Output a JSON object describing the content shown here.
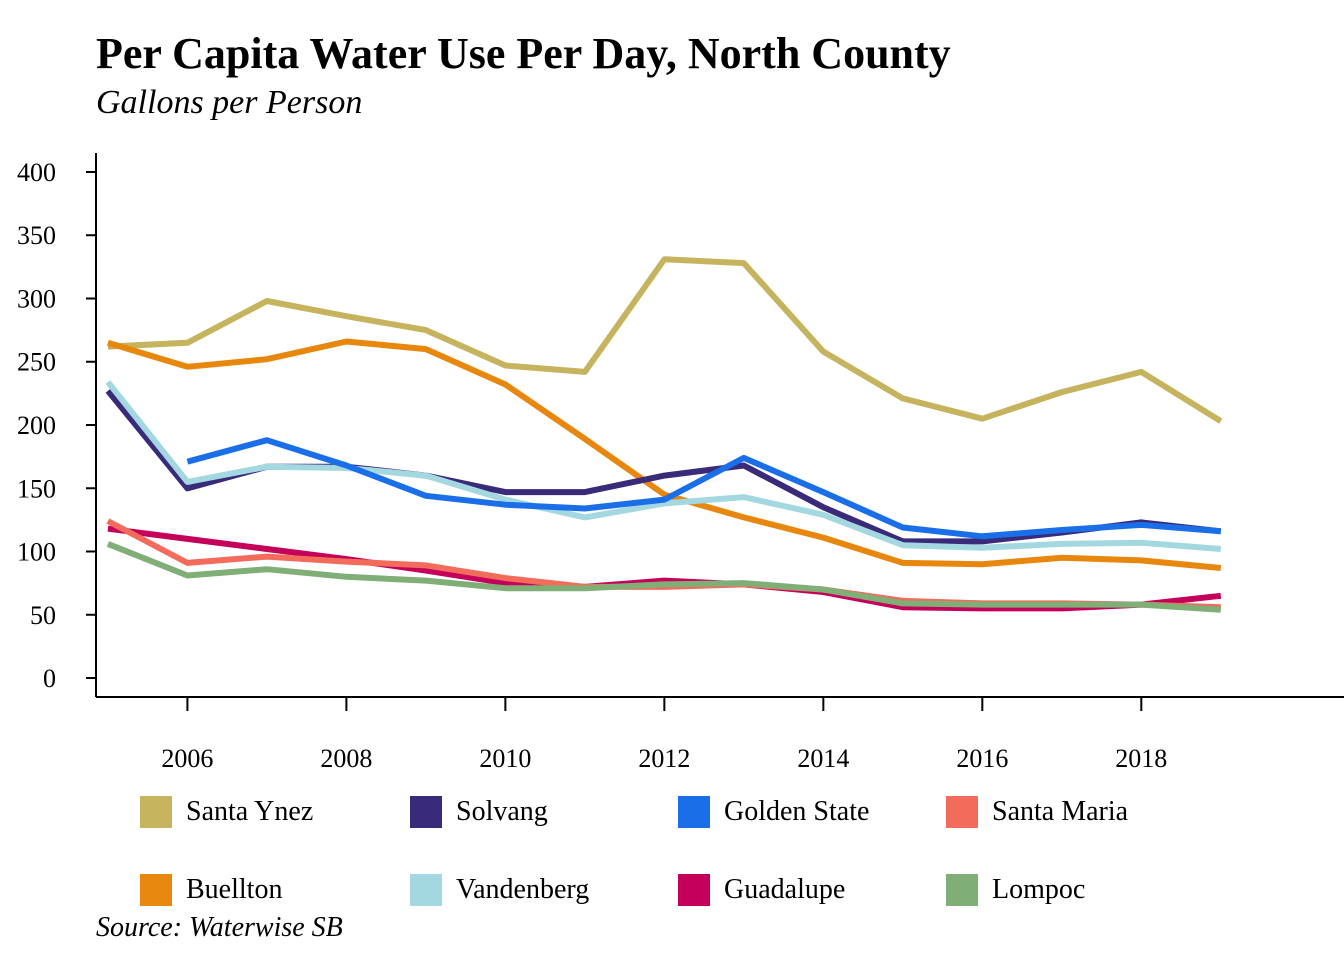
{
  "chart_data": {
    "type": "line",
    "title": "Per Capita Water Use Per Day, North County",
    "subtitle": "Gallons per Person",
    "source": "Source: Waterwise SB",
    "xlabel": "",
    "ylabel": "",
    "xlim": [
      2004.85,
      2020.55
    ],
    "ylim": [
      -15,
      415
    ],
    "x_ticks": [
      2006,
      2008,
      2010,
      2012,
      2014,
      2016,
      2018
    ],
    "y_ticks": [
      0,
      50,
      100,
      150,
      200,
      250,
      300,
      350,
      400
    ],
    "grid": false,
    "legend_position": "bottom",
    "series": [
      {
        "name": "Santa Ynez",
        "color": "#C5B35E",
        "x": [
          2005,
          2006,
          2007,
          2008,
          2009,
          2010,
          2011,
          2012,
          2013,
          2014,
          2015,
          2016,
          2017,
          2018,
          2019
        ],
        "values": [
          262,
          265,
          298,
          286,
          275,
          247,
          242,
          331,
          328,
          258,
          221,
          205,
          226,
          242,
          203
        ]
      },
      {
        "name": "Buellton",
        "color": "#E8870E",
        "x": [
          2005,
          2006,
          2007,
          2008,
          2009,
          2010,
          2011,
          2012,
          2013,
          2014,
          2015,
          2016,
          2017,
          2018,
          2019
        ],
        "values": [
          265,
          246,
          252,
          266,
          260,
          232,
          189,
          145,
          127,
          111,
          91,
          90,
          95,
          93,
          87
        ]
      },
      {
        "name": "Solvang",
        "color": "#3A2A7A",
        "x": [
          2005,
          2006,
          2007,
          2008,
          2009,
          2010,
          2011,
          2012,
          2013,
          2014,
          2015,
          2016,
          2017,
          2018,
          2019
        ],
        "values": [
          227,
          150,
          167,
          167,
          160,
          147,
          147,
          160,
          168,
          135,
          108,
          108,
          115,
          123,
          116
        ]
      },
      {
        "name": "Vandenberg",
        "color": "#A4D8E0",
        "x": [
          2005,
          2006,
          2007,
          2008,
          2009,
          2010,
          2011,
          2012,
          2013,
          2014,
          2015,
          2016,
          2017,
          2018,
          2019
        ],
        "values": [
          234,
          155,
          167,
          166,
          160,
          141,
          127,
          138,
          143,
          129,
          105,
          103,
          106,
          107,
          102
        ]
      },
      {
        "name": "Golden State",
        "color": "#1A6FE8",
        "x": [
          2006,
          2007,
          2008,
          2009,
          2010,
          2011,
          2012,
          2013,
          2014,
          2015,
          2016,
          2017,
          2018,
          2019
        ],
        "values": [
          171,
          188,
          168,
          144,
          137,
          134,
          141,
          174,
          147,
          119,
          112,
          117,
          121,
          116
        ]
      },
      {
        "name": "Guadalupe",
        "color": "#C4005A",
        "x": [
          2005,
          2006,
          2007,
          2008,
          2009,
          2010,
          2011,
          2012,
          2013,
          2014,
          2015,
          2016,
          2017,
          2018,
          2019
        ],
        "values": [
          118,
          110,
          102,
          94,
          85,
          75,
          72,
          77,
          74,
          68,
          56,
          55,
          55,
          58,
          65
        ]
      },
      {
        "name": "Santa Maria",
        "color": "#F26B5B",
        "x": [
          2005,
          2006,
          2007,
          2008,
          2009,
          2010,
          2011,
          2012,
          2013,
          2014,
          2015,
          2016,
          2017,
          2018,
          2019
        ],
        "values": [
          124,
          91,
          96,
          92,
          89,
          79,
          72,
          72,
          74,
          70,
          61,
          59,
          59,
          58,
          56
        ]
      },
      {
        "name": "Lompoc",
        "color": "#7FAE76",
        "x": [
          2005,
          2006,
          2007,
          2008,
          2009,
          2010,
          2011,
          2012,
          2013,
          2014,
          2015,
          2016,
          2017,
          2018,
          2019
        ],
        "values": [
          106,
          81,
          86,
          80,
          77,
          71,
          71,
          74,
          75,
          70,
          59,
          58,
          58,
          58,
          54
        ]
      }
    ],
    "legend_order": [
      "Santa Ynez",
      "Solvang",
      "Golden State",
      "Santa Maria",
      "Buellton",
      "Vandenberg",
      "Guadalupe",
      "Lompoc"
    ]
  }
}
